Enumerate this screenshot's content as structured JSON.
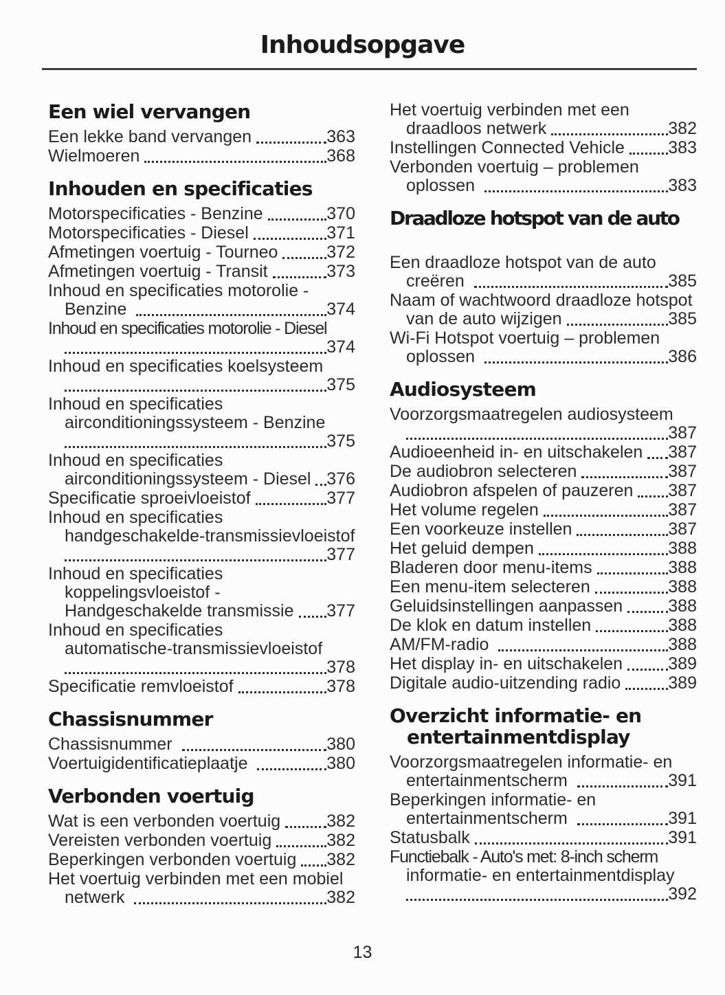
{
  "doc": {
    "title": "Inhoudsopgave",
    "page_number": "13"
  },
  "colors": {
    "background": "#fcfcfc",
    "text": "#2b2b2b",
    "heading": "#1b1b1b",
    "rule": "#3e3e3e"
  },
  "toc": {
    "columns": [
      {
        "blocks": [
          {
            "heading": {
              "lines": [
                "Een wiel vervangen"
              ]
            },
            "entries": [
              {
                "lines": [
                  "Een lekke band vervangen"
                ],
                "page": "363"
              },
              {
                "lines": [
                  "Wielmoeren"
                ],
                "page": "368"
              }
            ]
          },
          {
            "heading": {
              "lines": [
                "Inhouden en specificaties"
              ]
            },
            "entries": [
              {
                "lines": [
                  "Motorspecificaties - Benzine"
                ],
                "page": "370"
              },
              {
                "lines": [
                  "Motorspecificaties - Diesel"
                ],
                "page": "371"
              },
              {
                "lines": [
                  "Afmetingen voertuig - Tourneo"
                ],
                "page": "372"
              },
              {
                "lines": [
                  "Afmetingen voertuig - Transit"
                ],
                "page": "373"
              },
              {
                "lines": [
                  "Inhoud en specificaties motorolie -",
                  "Benzine "
                ],
                "page": "374"
              },
              {
                "lines": [
                  "Inhoud en specificaties motorolie - Diesel",
                  ""
                ],
                "page": "374",
                "tight": [
                  0
                ]
              },
              {
                "lines": [
                  "Inhoud en specificaties koelsysteem",
                  ""
                ],
                "page": "375"
              },
              {
                "lines": [
                  "Inhoud en specificaties",
                  "airconditioningssysteem - Benzine",
                  ""
                ],
                "page": "375"
              },
              {
                "lines": [
                  "Inhoud en specificaties",
                  "airconditioningssysteem - Diesel"
                ],
                "page": "376"
              },
              {
                "lines": [
                  "Specificatie sproeivloeistof"
                ],
                "page": "377"
              },
              {
                "lines": [
                  "Inhoud en specificaties",
                  "handgeschakelde-transmissievloeistof",
                  ""
                ],
                "page": "377"
              },
              {
                "lines": [
                  "Inhoud en specificaties",
                  "koppelingsvloeistof -",
                  "Handgeschakelde transmissie"
                ],
                "page": "377"
              },
              {
                "lines": [
                  "Inhoud en specificaties",
                  "automatische-transmissievloeistof",
                  ""
                ],
                "page": "378"
              },
              {
                "lines": [
                  "Specificatie remvloeistof"
                ],
                "page": "378"
              }
            ]
          },
          {
            "heading": {
              "lines": [
                "Chassisnummer"
              ]
            },
            "entries": [
              {
                "lines": [
                  "Chassisnummer "
                ],
                "page": "380"
              },
              {
                "lines": [
                  "Voertuigidentificatieplaatje "
                ],
                "page": "380"
              }
            ]
          },
          {
            "heading": {
              "lines": [
                "Verbonden voertuig"
              ]
            },
            "entries": [
              {
                "lines": [
                  "Wat is een verbonden voertuig"
                ],
                "page": "382"
              },
              {
                "lines": [
                  "Vereisten verbonden voertuig"
                ],
                "page": "382"
              },
              {
                "lines": [
                  "Beperkingen verbonden voertuig"
                ],
                "page": "382"
              },
              {
                "lines": [
                  "Het voertuig verbinden met een mobiel",
                  "netwerk "
                ],
                "page": "382"
              }
            ]
          }
        ]
      },
      {
        "blocks": [
          {
            "entries": [
              {
                "lines": [
                  "Het voertuig verbinden met een",
                  "draadloos netwerk"
                ],
                "page": "382"
              },
              {
                "lines": [
                  "Instellingen Connected Vehicle"
                ],
                "page": "383"
              },
              {
                "lines": [
                  "Verbonden voertuig – problemen",
                  "oplossen "
                ],
                "page": "383"
              }
            ]
          },
          {
            "heading": {
              "lines": [
                "Draadloze hotspot van de auto"
              ],
              "tight": true,
              "gap_after": true
            },
            "entries": [
              {
                "lines": [
                  "Een draadloze hotspot van de auto",
                  "creëren "
                ],
                "page": "385"
              },
              {
                "lines": [
                  "Naam of wachtwoord draadloze hotspot",
                  "van de auto wijzigen"
                ],
                "page": "385"
              },
              {
                "lines": [
                  "Wi-Fi Hotspot voertuig – problemen",
                  "oplossen "
                ],
                "page": "386"
              }
            ]
          },
          {
            "heading": {
              "lines": [
                "Audiosysteem"
              ]
            },
            "entries": [
              {
                "lines": [
                  "Voorzorgsmaatregelen audiosysteem",
                  ""
                ],
                "page": "387"
              },
              {
                "lines": [
                  "Audioeenheid in- en uitschakelen"
                ],
                "page": "387"
              },
              {
                "lines": [
                  "De audiobron selecteren"
                ],
                "page": "387"
              },
              {
                "lines": [
                  "Audiobron afspelen of pauzeren"
                ],
                "page": "387"
              },
              {
                "lines": [
                  "Het volume regelen"
                ],
                "page": "387"
              },
              {
                "lines": [
                  "Een voorkeuze instellen"
                ],
                "page": "387"
              },
              {
                "lines": [
                  "Het geluid dempen"
                ],
                "page": "388"
              },
              {
                "lines": [
                  "Bladeren door menu-items"
                ],
                "page": "388"
              },
              {
                "lines": [
                  "Een menu-item selecteren"
                ],
                "page": "388"
              },
              {
                "lines": [
                  "Geluidsinstellingen aanpassen"
                ],
                "page": "388"
              },
              {
                "lines": [
                  "De klok en datum instellen"
                ],
                "page": "388"
              },
              {
                "lines": [
                  "AM/FM-radio "
                ],
                "page": "388"
              },
              {
                "lines": [
                  "Het display in- en uitschakelen"
                ],
                "page": "389"
              },
              {
                "lines": [
                  "Digitale audio-uitzending radio"
                ],
                "page": "389"
              }
            ]
          },
          {
            "heading": {
              "lines": [
                "Overzicht informatie- en",
                "entertainmentdisplay"
              ]
            },
            "entries": [
              {
                "lines": [
                  "Voorzorgsmaatregelen informatie- en",
                  "entertainmentscherm "
                ],
                "page": "391"
              },
              {
                "lines": [
                  "Beperkingen informatie- en",
                  "entertainmentscherm "
                ],
                "page": "391"
              },
              {
                "lines": [
                  "Statusbalk"
                ],
                "page": "391"
              },
              {
                "lines": [
                  "Functiebalk - Auto's met: 8-inch scherm",
                  "informatie- en entertainmentdisplay",
                  ""
                ],
                "page": "392",
                "tight": [
                  0
                ]
              }
            ]
          }
        ]
      }
    ]
  }
}
